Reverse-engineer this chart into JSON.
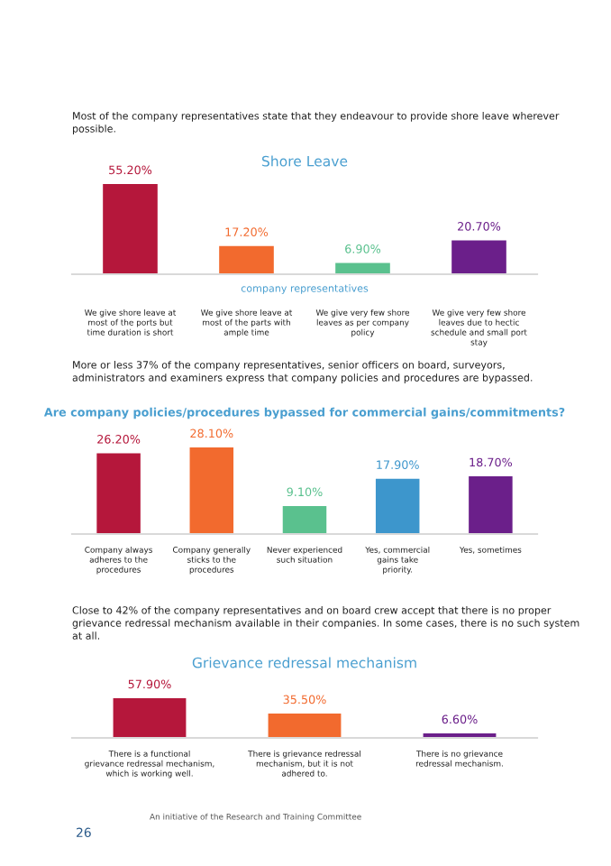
{
  "chart_data": [
    {
      "type": "bar",
      "title": "Shore Leave",
      "xlabel": "company representatives",
      "categories": [
        "We give shore leave at most of the ports but time duration is short",
        "We give shore leave at most of the parts with ample time",
        "We give very few shore leaves as per company policy",
        "We give very few shore leaves due to hectic schedule and small port stay"
      ],
      "values": [
        55.2,
        17.2,
        6.9,
        20.7
      ],
      "colors": [
        "#b5173b",
        "#f26a2e",
        "#5ac18e",
        "#6b1f8a"
      ],
      "value_labels": [
        "55.20%",
        "17.20%",
        "6.90%",
        "20.70%"
      ],
      "annotations": [
        "Most of the company representatives state that they endeavour to provide shore leave wherever possible."
      ]
    },
    {
      "type": "bar",
      "title": "Are company policies/procedures bypassed for commercial gains/commitments?",
      "categories": [
        "Company always adheres to the procedures",
        "Company generally sticks to the procedures",
        "Never experienced such situation",
        "Yes, commercial gains take priority.",
        "Yes, sometimes"
      ],
      "values": [
        26.2,
        28.1,
        9.1,
        17.9,
        18.7
      ],
      "colors": [
        "#b5173b",
        "#f26a2e",
        "#5ac18e",
        "#3d96cc",
        "#6b1f8a"
      ],
      "value_labels": [
        "26.20%",
        "28.10%",
        "9.10%",
        "17.90%",
        "18.70%"
      ],
      "annotations": [
        "More or less 37% of the company representatives, senior officers on board, surveyors, administrators and examiners express that company policies and procedures are bypassed."
      ]
    },
    {
      "type": "bar",
      "title": "Grievance redressal mechanism",
      "categories": [
        "There is a functional grievance redressal mechanism, which is working well.",
        "There is grievance redressal mechanism, but it is not adhered to.",
        "There is no grievance redressal mechanism."
      ],
      "values": [
        57.9,
        35.5,
        6.6
      ],
      "colors": [
        "#b5173b",
        "#f26a2e",
        "#6b1f8a"
      ],
      "value_labels": [
        "57.90%",
        "35.50%",
        "6.60%"
      ],
      "annotations": [
        "Close to 42% of the company representatives and on board crew accept that there is no proper grievance redressal mechanism available in their companies. In some cases, there is no such system at all.",
        "An initiative of the Research and Training Committee",
        "26"
      ]
    }
  ]
}
